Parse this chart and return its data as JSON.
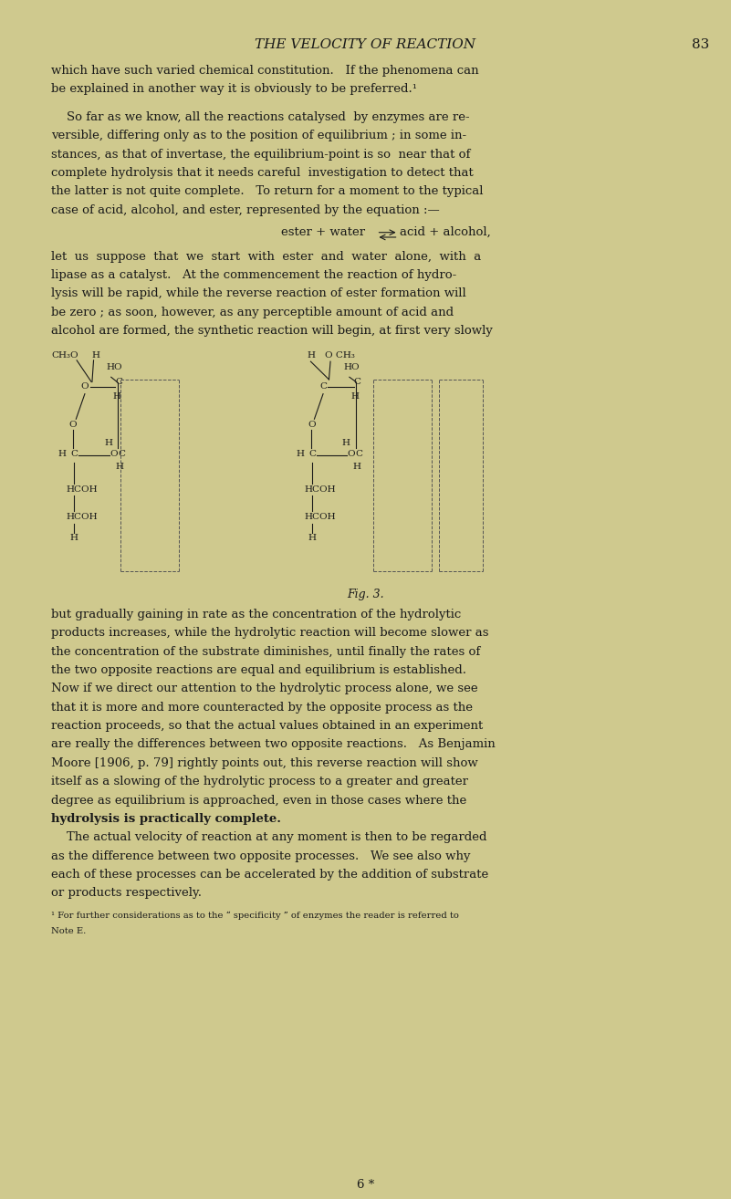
{
  "background_color": "#cfc98e",
  "page_width": 8.01,
  "page_height": 13.14,
  "text_color": "#1a1a1a",
  "header_text": "THE VELOCITY OF REACTION",
  "page_number": "83",
  "body_lines": [
    "which have such varied chemical constitution.   If the phenomena can",
    "be explained in another way it is obviously to be preferred.¹",
    "",
    "    So far as we know, all the reactions catalysed  by enzymes are re-",
    "versible, differing only as to the position of equilibrium ; in some in-",
    "stances, as that of invertase, the equilibrium-point is so  near that of",
    "complete hydrolysis that it needs careful  investigation to detect that",
    "the latter is not quite complete.   To return for a moment to the typical",
    "case of acid, alcohol, and ester, represented by the equation :—"
  ],
  "equation_line": "ester + water⇄acid + alcohol,",
  "body_lines2": [
    "let  us  suppose  that  we  start  with  ester  and  water  alone,  with  a",
    "lipase as a catalyst.   At the commencement the reaction of hydro-",
    "lysis will be rapid, while the reverse reaction of ester formation will",
    "be zero ; as soon, however, as any perceptible amount of acid and",
    "alcohol are formed, the synthetic reaction will begin, at first very slowly"
  ],
  "caption": "Fig. 3.",
  "body_lines3": [
    "but gradually gaining in rate as the concentration of the hydrolytic",
    "products increases, while the hydrolytic reaction will become slower as",
    "the concentration of the substrate diminishes, until finally the rates of",
    "the two opposite reactions are equal and equilibrium is established.",
    "Now if we direct our attention to the hydrolytic process alone, we see",
    "that it is more and more counteracted by the opposite process as the",
    "reaction proceeds, so that the actual values obtained in an experiment",
    "are really the differences between two opposite reactions.   As Benjamin",
    "Moore [1906, p. 79] rightly points out, this reverse reaction will show",
    "itself as a slowing of the hydrolytic process to a greater and greater",
    "degree as equilibrium is approached, even in those cases where the",
    "hydrolysis is practically complete.",
    "    The actual velocity of reaction at any moment is then to be regarded",
    "as the difference between two opposite processes.   We see also why",
    "each of these processes can be accelerated by the addition of substrate",
    "or products respectively."
  ],
  "footnote": "¹ For further considerations as to the “ specificity ” of enzymes the reader is referred to\nNote E.",
  "footer": "6 *"
}
